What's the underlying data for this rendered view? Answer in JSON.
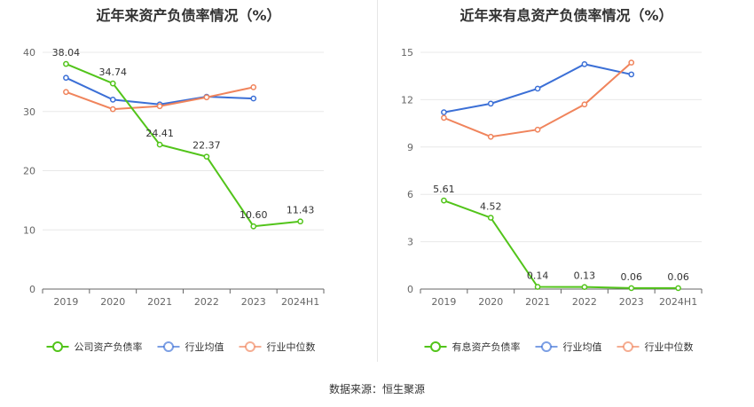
{
  "chart_data": [
    {
      "type": "line",
      "title": "近年来资产负债率情况（%）",
      "categories": [
        "2019",
        "2020",
        "2021",
        "2022",
        "2023",
        "2024H1"
      ],
      "ylim": [
        0,
        40
      ],
      "yticks": [
        0,
        10,
        20,
        30,
        40
      ],
      "grid": true,
      "legend": "bottom",
      "series": [
        {
          "name": "公司资产负债率",
          "color": "#52c41a",
          "labeled": true,
          "values": [
            38.04,
            34.74,
            24.41,
            22.37,
            10.6,
            11.43
          ],
          "labels": [
            "38.04",
            "34.74",
            "24.41",
            "22.37",
            "10.60",
            "11.43"
          ]
        },
        {
          "name": "行业均值",
          "color": "#3b6fd6",
          "labeled": false,
          "values": [
            35.7,
            32.0,
            31.2,
            32.5,
            32.2,
            null
          ]
        },
        {
          "name": "行业中位数",
          "color": "#f0845c",
          "labeled": false,
          "values": [
            33.3,
            30.4,
            30.9,
            32.4,
            34.1,
            null
          ]
        }
      ]
    },
    {
      "type": "line",
      "title": "近年来有息资产负债率情况（%）",
      "categories": [
        "2019",
        "2020",
        "2021",
        "2022",
        "2023",
        "2024H1"
      ],
      "ylim": [
        0,
        15
      ],
      "yticks": [
        0,
        3,
        6,
        9,
        12,
        15
      ],
      "grid": true,
      "legend": "bottom",
      "series": [
        {
          "name": "有息资产负债率",
          "color": "#52c41a",
          "labeled": true,
          "values": [
            5.61,
            4.52,
            0.14,
            0.13,
            0.06,
            0.06
          ],
          "labels": [
            "5.61",
            "4.52",
            "0.14",
            "0.13",
            "0.06",
            "0.06"
          ]
        },
        {
          "name": "行业均值",
          "color": "#3b6fd6",
          "labeled": false,
          "values": [
            11.2,
            11.75,
            12.7,
            14.25,
            13.6,
            null
          ]
        },
        {
          "name": "行业中位数",
          "color": "#f0845c",
          "labeled": false,
          "values": [
            10.85,
            9.65,
            10.1,
            11.7,
            14.35,
            null
          ]
        }
      ]
    }
  ],
  "source": "数据来源：恒生聚源"
}
